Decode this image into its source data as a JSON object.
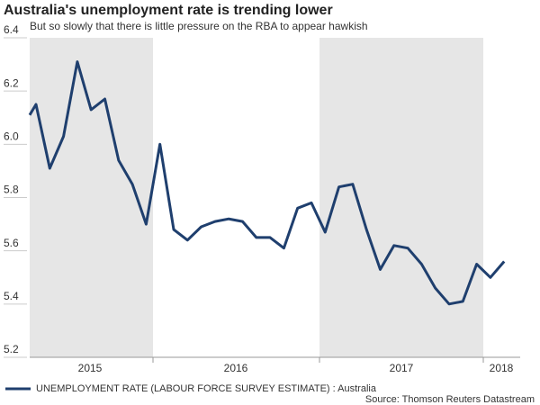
{
  "chart_data": {
    "type": "line",
    "title": "Australia's unemployment rate is trending lower",
    "subtitle": "But so slowly that there is little pressure on the RBA to appear hawkish",
    "year_labels": [
      "2015",
      "2016",
      "2017",
      "2018"
    ],
    "series": [
      {
        "name": "UNEMPLOYMENT RATE (LABOUR FORCE SURVEY ESTIMATE) : Australia",
        "color": "#1f3f6e",
        "values": [
          6.11,
          6.15,
          5.91,
          6.03,
          6.31,
          6.13,
          6.17,
          5.94,
          5.85,
          5.7,
          6.0,
          5.68,
          5.64,
          5.69,
          5.71,
          5.72,
          5.71,
          5.65,
          5.65,
          5.61,
          5.76,
          5.78,
          5.67,
          5.84,
          5.85,
          5.68,
          5.53,
          5.62,
          5.61,
          5.55,
          5.46,
          5.4,
          5.41,
          5.55,
          5.5,
          5.56
        ]
      }
    ],
    "ylim": [
      5.2,
      6.4
    ],
    "yticks": [
      5.2,
      5.4,
      5.6,
      5.8,
      {
        "value": 6,
        "label": "6.0"
      },
      6.2,
      6.4
    ],
    "source": "Source: Thomson Reuters Datastream"
  }
}
